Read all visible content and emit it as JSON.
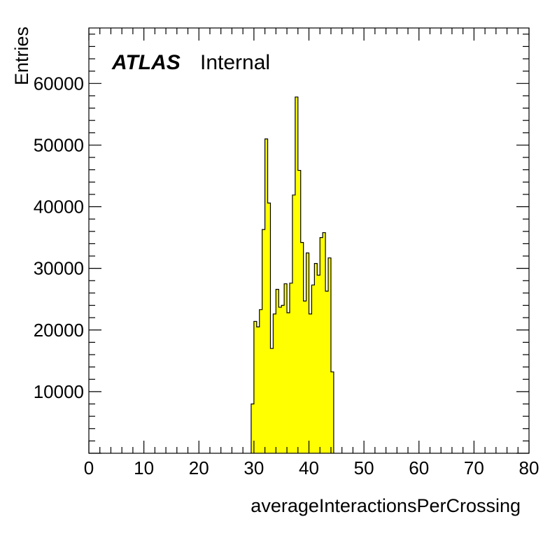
{
  "chart_data": {
    "type": "bar",
    "xlabel": "averageInteractionsPerCrossing",
    "ylabel": "Entries",
    "xlim": [
      0,
      80
    ],
    "ylim": [
      0,
      69000
    ],
    "x_ticks": [
      0,
      10,
      20,
      30,
      40,
      50,
      60,
      70,
      80
    ],
    "y_ticks": [
      10000,
      20000,
      30000,
      40000,
      50000,
      60000
    ],
    "label": {
      "experiment": "ATLAS",
      "status": "Internal"
    },
    "bin_width": 0.5,
    "bar_color": "#ffff00",
    "series": [
      {
        "bin_lower_edges": [
          29.5,
          30.0,
          30.5,
          31.0,
          31.5,
          32.0,
          32.5,
          33.0,
          33.5,
          34.0,
          34.5,
          35.0,
          35.5,
          36.0,
          36.5,
          37.0,
          37.5,
          38.0,
          38.5,
          39.0,
          39.5,
          40.0,
          40.5,
          41.0,
          41.5,
          42.0,
          42.5,
          43.0,
          43.5,
          44.0
        ],
        "values": [
          8000,
          21400,
          20500,
          23300,
          36300,
          51000,
          40600,
          17000,
          22600,
          26600,
          23700,
          24000,
          27500,
          22800,
          27600,
          41900,
          57800,
          45900,
          34200,
          24700,
          32500,
          22600,
          27300,
          30800,
          28900,
          35000,
          35800,
          26300,
          31700,
          13200
        ]
      }
    ]
  }
}
